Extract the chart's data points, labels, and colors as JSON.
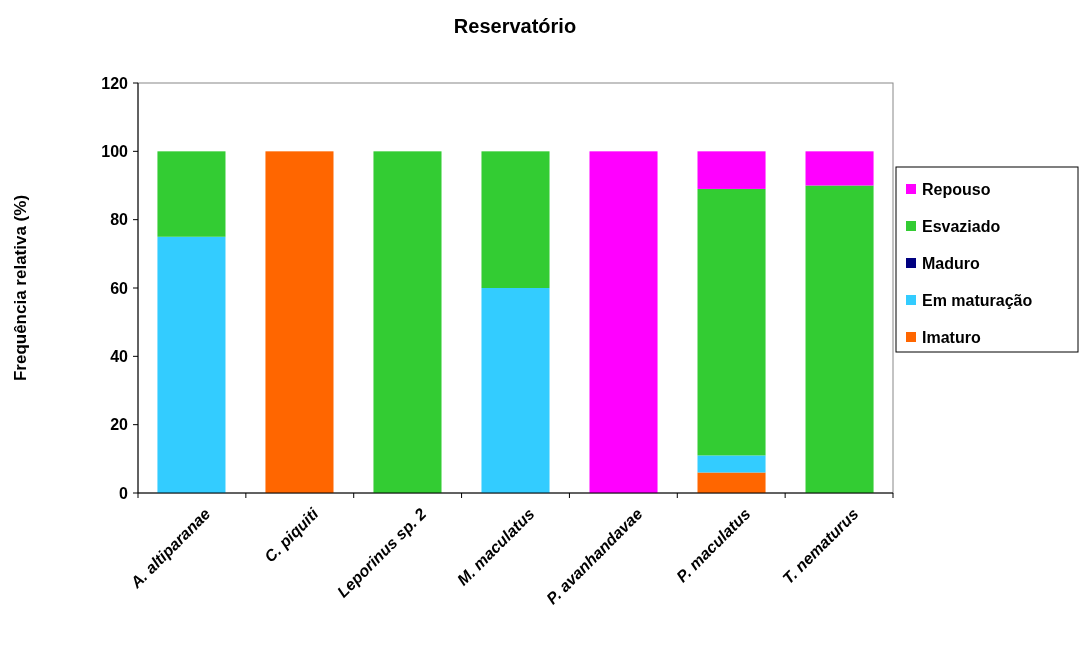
{
  "chart_data": {
    "type": "bar",
    "title": "Reservatório",
    "ylabel": "Frequência relativa (%)",
    "categories": [
      "A. altiparanae",
      "C. piquiti",
      "Leporinus sp. 2",
      "M. maculatus",
      "P. avanhandavae",
      "P. maculatus",
      "T. nematurus"
    ],
    "stacked": true,
    "ylim": [
      0,
      120
    ],
    "yticks": [
      0,
      20,
      40,
      60,
      80,
      100,
      120
    ],
    "grid": false,
    "legend": "right",
    "series": [
      {
        "name": "Imaturo",
        "color": "#ff6600",
        "values": [
          0,
          100,
          0,
          0,
          0,
          6,
          0
        ]
      },
      {
        "name": "Em maturação",
        "color": "#33ccff",
        "values": [
          75,
          0,
          0,
          60,
          0,
          5,
          0
        ]
      },
      {
        "name": "Maduro",
        "color": "#000080",
        "values": [
          0,
          0,
          0,
          0,
          0,
          0,
          0
        ]
      },
      {
        "name": "Esvaziado",
        "color": "#33cc33",
        "values": [
          25,
          0,
          100,
          40,
          0,
          78,
          90
        ]
      },
      {
        "name": "Repouso",
        "color": "#ff00ff",
        "values": [
          0,
          0,
          0,
          0,
          100,
          11,
          10
        ]
      }
    ]
  }
}
